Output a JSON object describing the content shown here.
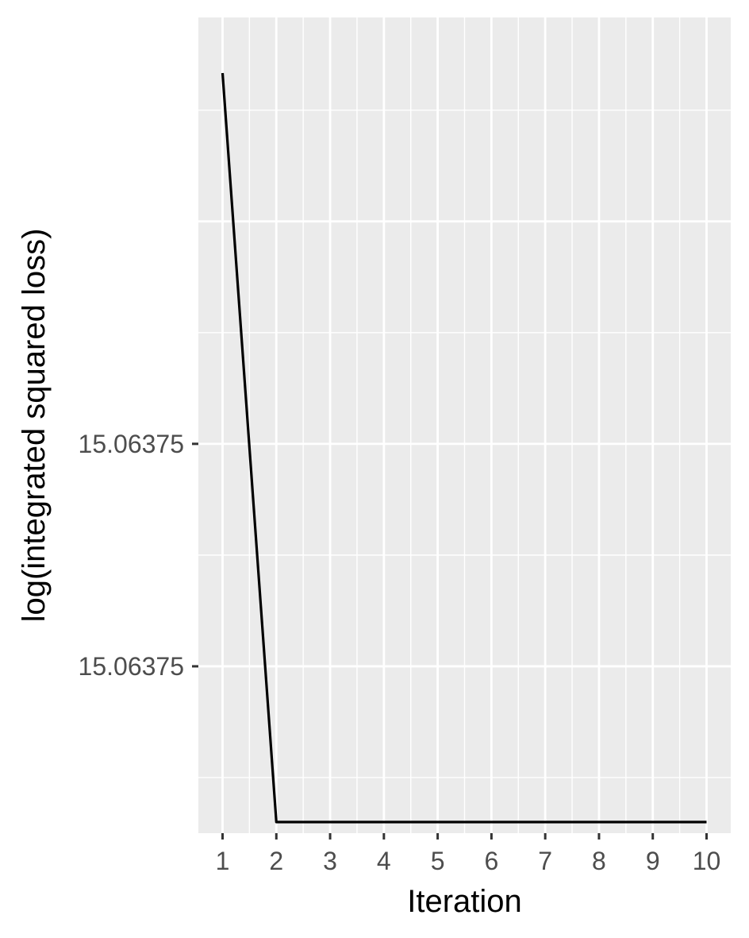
{
  "chart_data": {
    "type": "line",
    "xlabel": "Iteration",
    "ylabel": "log(integrated squared loss)",
    "x": [
      1,
      2,
      3,
      4,
      5,
      6,
      7,
      8,
      9,
      10
    ],
    "series": [
      {
        "values": [
          15.0637595,
          15.0637494,
          15.0637494,
          15.0637494,
          15.0637494,
          15.0637494,
          15.0637494,
          15.0637494,
          15.0637494,
          15.0637494
        ]
      }
    ],
    "y_tick_labels": [
      "15.06375",
      "15.06375"
    ],
    "x_tick_labels": [
      "1",
      "2",
      "3",
      "4",
      "5",
      "6",
      "7",
      "8",
      "9",
      "10"
    ],
    "xlim": [
      0.55,
      10.45
    ],
    "ylim": [
      15.06374925,
      15.06376025
    ],
    "grid": true,
    "panel_background": "#ebebeb",
    "grid_color": "#ffffff",
    "line_color": "#000000",
    "legend": "none"
  }
}
